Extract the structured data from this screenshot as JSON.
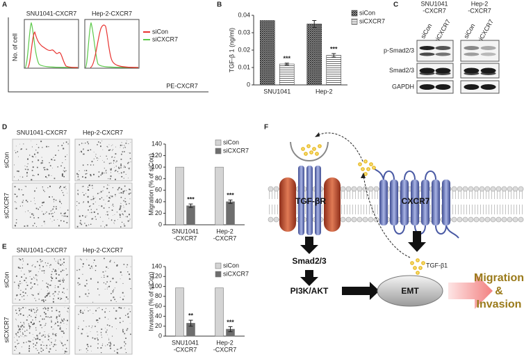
{
  "panel_letters": [
    "A",
    "B",
    "C",
    "D",
    "E",
    "F"
  ],
  "flow": {
    "titles": [
      "SNU1041-CXCR7",
      "Hep-2-CXCR7"
    ],
    "legend": [
      {
        "name": "siCon",
        "color": "#e8322f"
      },
      {
        "name": "siCXCR7",
        "color": "#5cc94a"
      }
    ],
    "ylabel": "No. of cell",
    "xlabel": "PE-CXCR7"
  },
  "blot": {
    "columns": [
      [
        "SNU1041",
        "-CXCR7"
      ],
      [
        "Hep-2",
        "-CXCR7"
      ]
    ],
    "lanes": [
      "siCon",
      "siCXCR7",
      "siCon",
      "siCXCR7"
    ],
    "rows": [
      "p-Smad2/3",
      "Smad2/3",
      "GAPDH"
    ]
  },
  "migration_images": {
    "columns": [
      "SNU1041-CXCR7",
      "Hep-2-CXCR7"
    ],
    "rows": [
      "siCon",
      "siCXCR7"
    ]
  },
  "invasion_images": {
    "columns": [
      "SNU1041-CXCR7",
      "Hep-2-CXCR7"
    ],
    "rows": [
      "siCon",
      "siCXCR7"
    ]
  },
  "diagram": {
    "receptor": "TGF-βR",
    "cxcr7": "CXCR7",
    "ligand": "TGF-β1",
    "smad": "Smad2/3",
    "pi3k": "PI3K/AKT",
    "emt": "EMT",
    "outcome": [
      "Migration",
      "&",
      "Invasion"
    ]
  },
  "chart_data": [
    {
      "type": "bar",
      "ylabel": "TGF-β 1 (ng/ml)",
      "categories": [
        "SNU1041",
        "Hep-2"
      ],
      "series": [
        {
          "name": "siCon",
          "color": "#333333",
          "hatch": "cross",
          "values": [
            0.037,
            0.035
          ],
          "errors": [
            null,
            0.002
          ]
        },
        {
          "name": "siCXCR7",
          "color": "#444444",
          "hatch": "horizontal",
          "values": [
            0.012,
            0.017
          ],
          "errors": [
            0.0005,
            0.001
          ],
          "marks": [
            "***",
            "***"
          ]
        }
      ],
      "ylim": [
        0,
        0.04
      ],
      "yticks": [
        0,
        0.01,
        0.02,
        0.03,
        0.04
      ],
      "legend": "top-right"
    },
    {
      "type": "bar",
      "ylabel": "Migration (% of siCon)",
      "categories": [
        [
          "SNU1041",
          "-CXCR7"
        ],
        [
          "Hep-2",
          "-CXCR7"
        ]
      ],
      "series": [
        {
          "name": "siCon",
          "color": "#d4d4d4",
          "values": [
            100,
            100
          ]
        },
        {
          "name": "siCXCR7",
          "color": "#6e6e6e",
          "values": [
            33,
            40
          ],
          "errors": [
            3,
            3
          ],
          "marks": [
            "***",
            "***"
          ]
        }
      ],
      "ylim": [
        0,
        140
      ],
      "yticks": [
        0,
        20,
        40,
        60,
        80,
        100,
        120,
        140
      ],
      "legend": "top-right"
    },
    {
      "type": "bar",
      "ylabel": "Invasion (% of siCon)",
      "categories": [
        [
          "SNU1041",
          "-CXCR7"
        ],
        [
          "Hep-2",
          "-CXCR7"
        ]
      ],
      "series": [
        {
          "name": "siCon",
          "color": "#d4d4d4",
          "values": [
            97,
            97
          ]
        },
        {
          "name": "siCXCR7",
          "color": "#6e6e6e",
          "values": [
            26,
            14
          ],
          "errors": [
            6,
            5
          ],
          "marks": [
            "**",
            "***"
          ]
        }
      ],
      "ylim": [
        0,
        140
      ],
      "yticks": [
        0,
        20,
        40,
        60,
        80,
        100,
        120,
        140
      ],
      "legend": "top-right"
    }
  ]
}
